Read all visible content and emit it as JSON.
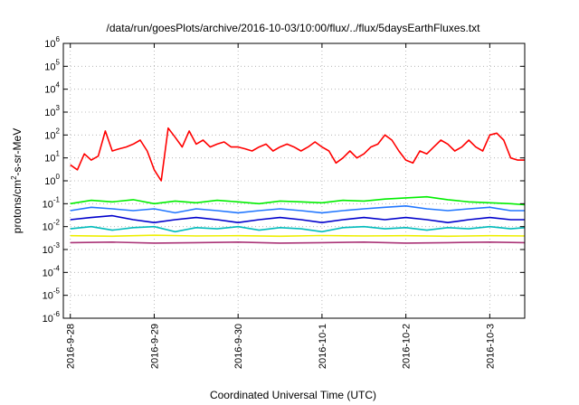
{
  "chart_data": {
    "type": "line",
    "title": "/data/run/goesPlots/archive/2016-10-03/10:00/flux/../flux/5daysEarthFluxes.txt",
    "xlabel": "Coordinated Universal Time (UTC)",
    "ylabel": "protons/cm²-s-sr-MeV",
    "ylabel_parts": {
      "pre": "protons/cm",
      "sup": "2",
      "post": "-s-sr-MeV"
    },
    "y_scale": "log",
    "ylim": [
      1e-06,
      1000000.0
    ],
    "y_ticks": [
      {
        "exp": "-6"
      },
      {
        "exp": "-5"
      },
      {
        "exp": "-4"
      },
      {
        "exp": "-3"
      },
      {
        "exp": "-2"
      },
      {
        "exp": "-1"
      },
      {
        "exp": "0"
      },
      {
        "exp": "1"
      },
      {
        "exp": "2"
      },
      {
        "exp": "3"
      },
      {
        "exp": "4"
      },
      {
        "exp": "5"
      },
      {
        "exp": "6"
      }
    ],
    "y_tick_base": "10",
    "xlim": [
      "2016-09-27 22:00",
      "2016-10-03 10:00"
    ],
    "x_ticks": [
      "2016-9-28",
      "2016-9-29",
      "2016-9-30",
      "2016-10-1",
      "2016-10-2",
      "2016-10-3"
    ],
    "grid": true,
    "legend": "none",
    "series": [
      {
        "color": "#ff0000",
        "x": [
          "2016-09-28 00:00",
          "2016-09-28 02:00",
          "2016-09-28 04:00",
          "2016-09-28 06:00",
          "2016-09-28 08:00",
          "2016-09-28 10:00",
          "2016-09-28 12:00",
          "2016-09-28 14:00",
          "2016-09-28 16:00",
          "2016-09-28 18:00",
          "2016-09-28 20:00",
          "2016-09-28 22:00",
          "2016-09-29 00:00",
          "2016-09-29 02:00",
          "2016-09-29 04:00",
          "2016-09-29 06:00",
          "2016-09-29 08:00",
          "2016-09-29 10:00",
          "2016-09-29 12:00",
          "2016-09-29 14:00",
          "2016-09-29 16:00",
          "2016-09-29 18:00",
          "2016-09-29 20:00",
          "2016-09-29 22:00",
          "2016-09-30 00:00",
          "2016-09-30 02:00",
          "2016-09-30 04:00",
          "2016-09-30 06:00",
          "2016-09-30 08:00",
          "2016-09-30 10:00",
          "2016-09-30 12:00",
          "2016-09-30 14:00",
          "2016-09-30 16:00",
          "2016-09-30 18:00",
          "2016-09-30 20:00",
          "2016-09-30 22:00",
          "2016-10-01 00:00",
          "2016-10-01 02:00",
          "2016-10-01 04:00",
          "2016-10-01 06:00",
          "2016-10-01 08:00",
          "2016-10-01 10:00",
          "2016-10-01 12:00",
          "2016-10-01 14:00",
          "2016-10-01 16:00",
          "2016-10-01 18:00",
          "2016-10-01 20:00",
          "2016-10-01 22:00",
          "2016-10-02 00:00",
          "2016-10-02 02:00",
          "2016-10-02 04:00",
          "2016-10-02 06:00",
          "2016-10-02 08:00",
          "2016-10-02 10:00",
          "2016-10-02 12:00",
          "2016-10-02 14:00",
          "2016-10-02 16:00",
          "2016-10-02 18:00",
          "2016-10-02 20:00",
          "2016-10-02 22:00",
          "2016-10-03 00:00",
          "2016-10-03 02:00",
          "2016-10-03 04:00",
          "2016-10-03 06:00",
          "2016-10-03 08:00",
          "2016-10-03 10:00"
        ],
        "y": [
          5,
          3,
          15,
          8,
          12,
          150,
          20,
          25,
          30,
          40,
          60,
          20,
          3,
          1,
          200,
          80,
          30,
          150,
          40,
          60,
          30,
          40,
          50,
          30,
          30,
          25,
          20,
          30,
          40,
          20,
          30,
          40,
          30,
          20,
          30,
          50,
          30,
          20,
          6,
          10,
          20,
          10,
          15,
          30,
          40,
          100,
          60,
          20,
          8,
          6,
          20,
          15,
          30,
          60,
          40,
          20,
          30,
          60,
          30,
          20,
          100,
          120,
          60,
          10,
          8,
          8
        ]
      },
      {
        "color": "#00ee00",
        "x": [
          "2016-09-28 00:00",
          "2016-09-28 06:00",
          "2016-09-28 12:00",
          "2016-09-28 18:00",
          "2016-09-29 00:00",
          "2016-09-29 06:00",
          "2016-09-29 12:00",
          "2016-09-29 18:00",
          "2016-09-30 00:00",
          "2016-09-30 06:00",
          "2016-09-30 12:00",
          "2016-09-30 18:00",
          "2016-10-01 00:00",
          "2016-10-01 06:00",
          "2016-10-01 12:00",
          "2016-10-01 18:00",
          "2016-10-02 00:00",
          "2016-10-02 06:00",
          "2016-10-02 12:00",
          "2016-10-02 18:00",
          "2016-10-03 00:00",
          "2016-10-03 06:00",
          "2016-10-03 10:00"
        ],
        "y": [
          0.1,
          0.14,
          0.12,
          0.15,
          0.1,
          0.13,
          0.11,
          0.14,
          0.12,
          0.1,
          0.13,
          0.12,
          0.11,
          0.14,
          0.13,
          0.16,
          0.18,
          0.2,
          0.15,
          0.12,
          0.11,
          0.1,
          0.09
        ]
      },
      {
        "color": "#2277ff",
        "x": [
          "2016-09-28 00:00",
          "2016-09-28 06:00",
          "2016-09-28 12:00",
          "2016-09-28 18:00",
          "2016-09-29 00:00",
          "2016-09-29 06:00",
          "2016-09-29 12:00",
          "2016-09-29 18:00",
          "2016-09-30 00:00",
          "2016-09-30 06:00",
          "2016-09-30 12:00",
          "2016-09-30 18:00",
          "2016-10-01 00:00",
          "2016-10-01 06:00",
          "2016-10-01 12:00",
          "2016-10-01 18:00",
          "2016-10-02 00:00",
          "2016-10-02 06:00",
          "2016-10-02 12:00",
          "2016-10-02 18:00",
          "2016-10-03 00:00",
          "2016-10-03 06:00",
          "2016-10-03 10:00"
        ],
        "y": [
          0.05,
          0.07,
          0.06,
          0.05,
          0.06,
          0.04,
          0.06,
          0.05,
          0.04,
          0.05,
          0.06,
          0.05,
          0.04,
          0.05,
          0.06,
          0.07,
          0.08,
          0.06,
          0.05,
          0.06,
          0.07,
          0.05,
          0.05
        ]
      },
      {
        "color": "#0000cc",
        "x": [
          "2016-09-28 00:00",
          "2016-09-28 06:00",
          "2016-09-28 12:00",
          "2016-09-28 18:00",
          "2016-09-29 00:00",
          "2016-09-29 06:00",
          "2016-09-29 12:00",
          "2016-09-29 18:00",
          "2016-09-30 00:00",
          "2016-09-30 06:00",
          "2016-09-30 12:00",
          "2016-09-30 18:00",
          "2016-10-01 00:00",
          "2016-10-01 06:00",
          "2016-10-01 12:00",
          "2016-10-01 18:00",
          "2016-10-02 00:00",
          "2016-10-02 06:00",
          "2016-10-02 12:00",
          "2016-10-02 18:00",
          "2016-10-03 00:00",
          "2016-10-03 06:00",
          "2016-10-03 10:00"
        ],
        "y": [
          0.02,
          0.025,
          0.03,
          0.02,
          0.015,
          0.02,
          0.025,
          0.02,
          0.015,
          0.02,
          0.025,
          0.02,
          0.015,
          0.02,
          0.025,
          0.02,
          0.025,
          0.02,
          0.015,
          0.02,
          0.025,
          0.02,
          0.02
        ]
      },
      {
        "color": "#00bbbb",
        "x": [
          "2016-09-28 00:00",
          "2016-09-28 06:00",
          "2016-09-28 12:00",
          "2016-09-28 18:00",
          "2016-09-29 00:00",
          "2016-09-29 06:00",
          "2016-09-29 12:00",
          "2016-09-29 18:00",
          "2016-09-30 00:00",
          "2016-09-30 06:00",
          "2016-09-30 12:00",
          "2016-09-30 18:00",
          "2016-10-01 00:00",
          "2016-10-01 06:00",
          "2016-10-01 12:00",
          "2016-10-01 18:00",
          "2016-10-02 00:00",
          "2016-10-02 06:00",
          "2016-10-02 12:00",
          "2016-10-02 18:00",
          "2016-10-03 00:00",
          "2016-10-03 06:00",
          "2016-10-03 10:00"
        ],
        "y": [
          0.008,
          0.01,
          0.007,
          0.009,
          0.01,
          0.006,
          0.009,
          0.008,
          0.01,
          0.007,
          0.009,
          0.008,
          0.006,
          0.009,
          0.01,
          0.008,
          0.009,
          0.007,
          0.009,
          0.008,
          0.01,
          0.008,
          0.009
        ]
      },
      {
        "color": "#eeee00",
        "x": [
          "2016-09-28 00:00",
          "2016-09-28 12:00",
          "2016-09-29 00:00",
          "2016-09-29 12:00",
          "2016-09-30 00:00",
          "2016-09-30 12:00",
          "2016-10-01 00:00",
          "2016-10-01 12:00",
          "2016-10-02 00:00",
          "2016-10-02 12:00",
          "2016-10-03 00:00",
          "2016-10-03 10:00"
        ],
        "y": [
          0.004,
          0.0038,
          0.0042,
          0.0039,
          0.004,
          0.0038,
          0.0041,
          0.0039,
          0.004,
          0.0038,
          0.004,
          0.0039
        ]
      },
      {
        "color": "#aa3377",
        "x": [
          "2016-09-28 00:00",
          "2016-09-28 12:00",
          "2016-09-29 00:00",
          "2016-09-29 12:00",
          "2016-09-30 00:00",
          "2016-09-30 12:00",
          "2016-10-01 00:00",
          "2016-10-01 12:00",
          "2016-10-02 00:00",
          "2016-10-02 12:00",
          "2016-10-03 00:00",
          "2016-10-03 10:00"
        ],
        "y": [
          0.002,
          0.0021,
          0.0019,
          0.002,
          0.0021,
          0.0019,
          0.002,
          0.0021,
          0.0019,
          0.002,
          0.0021,
          0.002
        ]
      }
    ]
  }
}
